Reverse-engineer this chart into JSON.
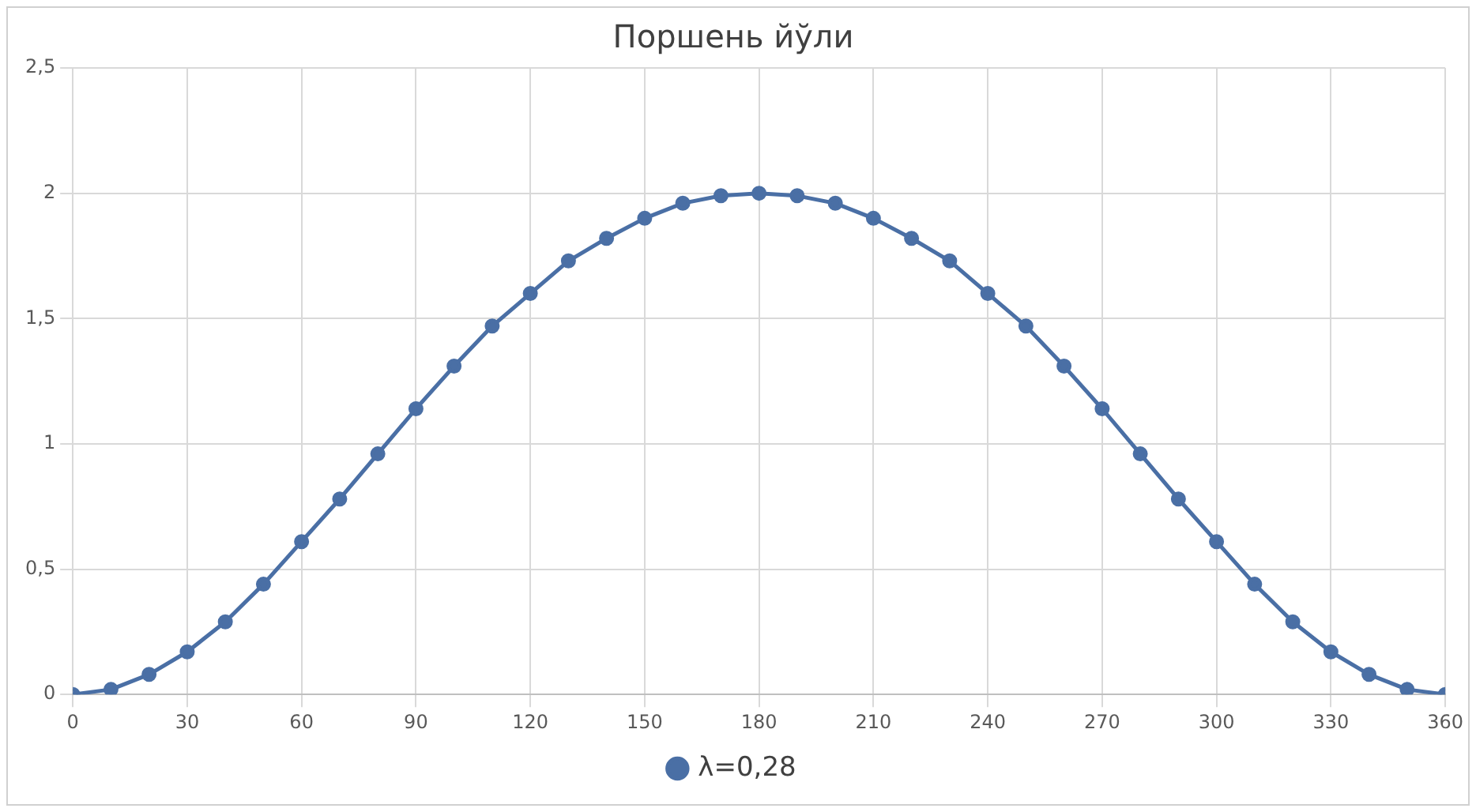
{
  "chart_data": {
    "type": "line",
    "title": "Поршень йўли",
    "x": [
      0,
      10,
      20,
      30,
      40,
      50,
      60,
      70,
      80,
      90,
      100,
      110,
      120,
      130,
      140,
      150,
      160,
      170,
      180,
      190,
      200,
      210,
      220,
      230,
      240,
      250,
      260,
      270,
      280,
      290,
      300,
      310,
      320,
      330,
      340,
      350,
      360
    ],
    "series": [
      {
        "name": "λ=0,28",
        "color": "#4a6fa5",
        "values": [
          0,
          0.02,
          0.08,
          0.17,
          0.29,
          0.44,
          0.61,
          0.78,
          0.96,
          1.14,
          1.31,
          1.47,
          1.6,
          1.73,
          1.82,
          1.9,
          1.96,
          1.99,
          2,
          1.99,
          1.96,
          1.9,
          1.82,
          1.73,
          1.6,
          1.47,
          1.31,
          1.14,
          0.96,
          0.78,
          0.61,
          0.44,
          0.29,
          0.17,
          0.08,
          0.02,
          0
        ]
      }
    ],
    "xlim": [
      0,
      360
    ],
    "xticks": [
      0,
      30,
      60,
      90,
      120,
      150,
      180,
      210,
      240,
      270,
      300,
      330,
      360
    ],
    "ylim": [
      0,
      2.5
    ],
    "yticks": [
      {
        "value": 0,
        "label": "0"
      },
      {
        "value": 0.5,
        "label": "0,5"
      },
      {
        "value": 1,
        "label": "1"
      },
      {
        "value": 1.5,
        "label": "1,5"
      },
      {
        "value": 2,
        "label": "2"
      },
      {
        "value": 2.5,
        "label": "2,5"
      }
    ],
    "grid": true,
    "legend": "bottom",
    "marker": "circle",
    "line_style": "solid"
  }
}
